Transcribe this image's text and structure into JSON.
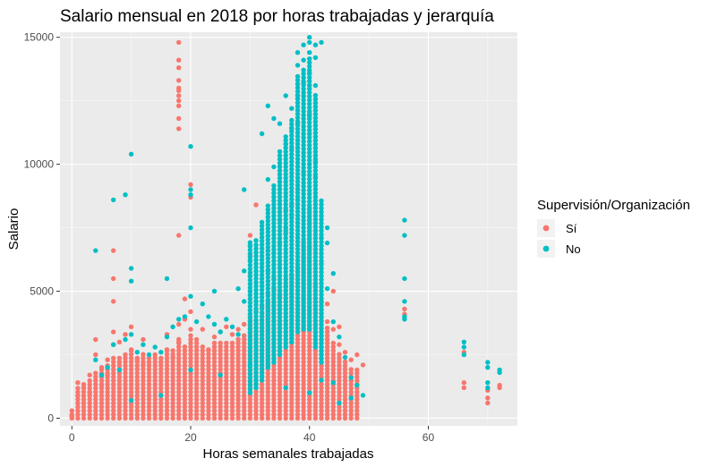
{
  "chart_data": {
    "type": "scatter",
    "title": "Salario mensual en 2018 por horas trabajadas y jerarquía",
    "xlabel": "Horas semanales trabajadas",
    "ylabel": "Salario",
    "xlim": [
      -2,
      75
    ],
    "ylim": [
      -300,
      15200
    ],
    "x_ticks": [
      0,
      20,
      40,
      60
    ],
    "y_ticks": [
      0,
      5000,
      10000,
      15000
    ],
    "x_tick_labels": [
      "0",
      "20",
      "40",
      "60"
    ],
    "y_tick_labels": [
      "0",
      "5000",
      "10000",
      "15000"
    ],
    "grid": true,
    "legend": {
      "title": "Supervisión/Organización",
      "placement": "right",
      "entries": [
        {
          "label": "Sí",
          "color": "#F8766D"
        },
        {
          "label": "No",
          "color": "#00BFC4"
        }
      ]
    },
    "series": [
      {
        "name": "Sí",
        "color": "#F8766D",
        "points": [
          [
            18,
            14800
          ],
          [
            18,
            14100
          ],
          [
            18,
            13800
          ],
          [
            18,
            13300
          ],
          [
            18,
            13000
          ],
          [
            18,
            12900
          ],
          [
            18,
            12700
          ],
          [
            18,
            12500
          ],
          [
            18,
            12300
          ],
          [
            18,
            11800
          ],
          [
            18,
            11400
          ],
          [
            20,
            9200
          ],
          [
            20,
            8700
          ],
          [
            18,
            7200
          ],
          [
            7,
            6600
          ],
          [
            7,
            5500
          ],
          [
            7,
            4600
          ],
          [
            19,
            4700
          ],
          [
            30,
            7200
          ],
          [
            30,
            6400
          ],
          [
            30,
            5600
          ],
          [
            31,
            8400
          ],
          [
            33,
            6600
          ],
          [
            34,
            5500
          ],
          [
            35,
            7800
          ],
          [
            36,
            8200
          ],
          [
            37,
            8400
          ],
          [
            38,
            9000
          ],
          [
            39,
            9700
          ],
          [
            40,
            10000
          ],
          [
            40,
            11200
          ],
          [
            41,
            9500
          ],
          [
            40,
            12000
          ],
          [
            39,
            12700
          ],
          [
            40,
            13100
          ],
          [
            38,
            11600
          ],
          [
            37,
            10600
          ],
          [
            36,
            7300
          ],
          [
            42,
            6100
          ],
          [
            43,
            4500
          ],
          [
            44,
            5000
          ],
          [
            45,
            3600
          ],
          [
            48,
            2500
          ],
          [
            49,
            2100
          ],
          [
            56,
            4300
          ],
          [
            56,
            4100
          ],
          [
            66,
            2600
          ],
          [
            66,
            1400
          ],
          [
            66,
            1200
          ],
          [
            70,
            1100
          ],
          [
            70,
            800
          ],
          [
            70,
            600
          ],
          [
            72,
            1300
          ],
          [
            72,
            1200
          ],
          [
            0,
            100
          ],
          [
            0,
            50
          ],
          [
            1,
            1400
          ],
          [
            1,
            900
          ],
          [
            2,
            1200
          ],
          [
            2,
            600
          ],
          [
            3,
            1700
          ],
          [
            3,
            1000
          ],
          [
            4,
            3100
          ],
          [
            4,
            2500
          ],
          [
            5,
            2000
          ],
          [
            5,
            1300
          ],
          [
            6,
            2300
          ],
          [
            6,
            1700
          ],
          [
            7,
            3400
          ],
          [
            7,
            2900
          ],
          [
            8,
            3000
          ],
          [
            8,
            2200
          ],
          [
            9,
            3300
          ],
          [
            9,
            2500
          ],
          [
            10,
            3600
          ],
          [
            10,
            2700
          ],
          [
            11,
            2300
          ],
          [
            12,
            3100
          ],
          [
            12,
            2100
          ],
          [
            13,
            2200
          ],
          [
            14,
            2500
          ],
          [
            15,
            2200
          ],
          [
            16,
            3300
          ],
          [
            16,
            2700
          ],
          [
            17,
            2400
          ],
          [
            18,
            3700
          ],
          [
            18,
            3000
          ],
          [
            19,
            3900
          ],
          [
            20,
            4200
          ],
          [
            20,
            3500
          ],
          [
            21,
            3100
          ],
          [
            22,
            3500
          ],
          [
            23,
            2700
          ],
          [
            24,
            3200
          ],
          [
            25,
            3400
          ],
          [
            26,
            3600
          ],
          [
            27,
            3300
          ],
          [
            28,
            3500
          ],
          [
            29,
            3700
          ],
          [
            30,
            4700
          ],
          [
            31,
            4200
          ],
          [
            32,
            4400
          ],
          [
            33,
            4900
          ],
          [
            34,
            5100
          ],
          [
            35,
            4800
          ],
          [
            36,
            5200
          ],
          [
            37,
            5600
          ],
          [
            38,
            5900
          ],
          [
            39,
            6300
          ],
          [
            40,
            6700
          ],
          [
            41,
            5300
          ],
          [
            42,
            4600
          ],
          [
            43,
            3800
          ],
          [
            44,
            3500
          ],
          [
            45,
            2900
          ],
          [
            46,
            2600
          ],
          [
            47,
            2300
          ],
          [
            48,
            1900
          ]
        ],
        "columns": [
          [
            0,
            0,
            400
          ],
          [
            1,
            0,
            1200
          ],
          [
            2,
            0,
            1400
          ],
          [
            3,
            0,
            1600
          ],
          [
            4,
            0,
            1800
          ],
          [
            5,
            0,
            2000
          ],
          [
            6,
            0,
            2200
          ],
          [
            7,
            0,
            2400
          ],
          [
            8,
            0,
            2400
          ],
          [
            9,
            0,
            2500
          ],
          [
            10,
            0,
            2700
          ],
          [
            11,
            0,
            2500
          ],
          [
            12,
            0,
            2600
          ],
          [
            13,
            0,
            2400
          ],
          [
            14,
            0,
            2500
          ],
          [
            15,
            0,
            2400
          ],
          [
            16,
            0,
            2700
          ],
          [
            17,
            0,
            2700
          ],
          [
            18,
            0,
            3200
          ],
          [
            19,
            0,
            2900
          ],
          [
            20,
            0,
            3300
          ],
          [
            21,
            0,
            3000
          ],
          [
            22,
            0,
            2900
          ],
          [
            23,
            0,
            2800
          ],
          [
            24,
            0,
            3000
          ],
          [
            25,
            0,
            3100
          ],
          [
            26,
            0,
            3000
          ],
          [
            27,
            0,
            3100
          ],
          [
            28,
            0,
            3200
          ],
          [
            29,
            0,
            3300
          ],
          [
            30,
            0,
            4000
          ],
          [
            31,
            0,
            3900
          ],
          [
            32,
            0,
            4200
          ],
          [
            33,
            0,
            4600
          ],
          [
            34,
            0,
            4900
          ],
          [
            35,
            0,
            5100
          ],
          [
            36,
            0,
            5600
          ],
          [
            37,
            0,
            5700
          ],
          [
            38,
            0,
            6200
          ],
          [
            39,
            0,
            7000
          ],
          [
            40,
            0,
            8400
          ],
          [
            41,
            0,
            5200
          ],
          [
            42,
            0,
            4600
          ],
          [
            43,
            0,
            3600
          ],
          [
            44,
            0,
            3000
          ],
          [
            45,
            0,
            2600
          ],
          [
            46,
            0,
            2300
          ],
          [
            47,
            0,
            2000
          ],
          [
            48,
            0,
            1800
          ]
        ]
      },
      {
        "name": "No",
        "color": "#00BFC4",
        "points": [
          [
            10,
            10400
          ],
          [
            9,
            8800
          ],
          [
            7,
            8600
          ],
          [
            10,
            5900
          ],
          [
            10,
            5400
          ],
          [
            4,
            6600
          ],
          [
            20,
            10700
          ],
          [
            20,
            9000
          ],
          [
            20,
            8800
          ],
          [
            20,
            7500
          ],
          [
            16,
            5500
          ],
          [
            24,
            5000
          ],
          [
            29,
            9000
          ],
          [
            30,
            6800
          ],
          [
            32,
            11200
          ],
          [
            33,
            12300
          ],
          [
            34,
            11800
          ],
          [
            35,
            11600
          ],
          [
            36,
            12700
          ],
          [
            37,
            12200
          ],
          [
            38,
            14400
          ],
          [
            38,
            13900
          ],
          [
            39,
            14700
          ],
          [
            39,
            14100
          ],
          [
            40,
            15000
          ],
          [
            40,
            14800
          ],
          [
            40,
            14400
          ],
          [
            41,
            14700
          ],
          [
            41,
            14200
          ],
          [
            41,
            13100
          ],
          [
            42,
            14800
          ],
          [
            40,
            13600
          ],
          [
            39,
            13200
          ],
          [
            38,
            12700
          ],
          [
            37,
            11400
          ],
          [
            36,
            10800
          ],
          [
            35,
            10500
          ],
          [
            34,
            9900
          ],
          [
            33,
            9400
          ],
          [
            31,
            7000
          ],
          [
            30,
            6200
          ],
          [
            29,
            5800
          ],
          [
            28,
            5100
          ],
          [
            43,
            7500
          ],
          [
            43,
            6900
          ],
          [
            44,
            5700
          ],
          [
            56,
            7800
          ],
          [
            56,
            7200
          ],
          [
            56,
            5500
          ],
          [
            56,
            4600
          ],
          [
            56,
            4000
          ],
          [
            56,
            3900
          ],
          [
            66,
            3000
          ],
          [
            66,
            2800
          ],
          [
            66,
            2500
          ],
          [
            70,
            2200
          ],
          [
            70,
            2000
          ],
          [
            70,
            1400
          ],
          [
            70,
            1200
          ],
          [
            72,
            1900
          ],
          [
            72,
            1800
          ],
          [
            4,
            2300
          ],
          [
            5,
            1700
          ],
          [
            6,
            2000
          ],
          [
            7,
            2900
          ],
          [
            8,
            1900
          ],
          [
            9,
            3100
          ],
          [
            10,
            3300
          ],
          [
            11,
            2600
          ],
          [
            12,
            2900
          ],
          [
            13,
            2500
          ],
          [
            14,
            2800
          ],
          [
            15,
            2600
          ],
          [
            16,
            3200
          ],
          [
            17,
            3600
          ],
          [
            18,
            3900
          ],
          [
            19,
            4000
          ],
          [
            20,
            4800
          ],
          [
            21,
            3800
          ],
          [
            22,
            4500
          ],
          [
            23,
            4000
          ],
          [
            24,
            3700
          ],
          [
            25,
            3400
          ],
          [
            26,
            3900
          ],
          [
            27,
            3600
          ],
          [
            28,
            3300
          ],
          [
            29,
            4600
          ],
          [
            30,
            5000
          ],
          [
            31,
            4600
          ],
          [
            32,
            5200
          ],
          [
            33,
            5800
          ],
          [
            34,
            6500
          ],
          [
            35,
            6900
          ],
          [
            36,
            7500
          ],
          [
            37,
            8000
          ],
          [
            38,
            8600
          ],
          [
            39,
            9600
          ],
          [
            40,
            11900
          ],
          [
            41,
            10100
          ],
          [
            42,
            7100
          ],
          [
            43,
            5100
          ],
          [
            44,
            3800
          ],
          [
            45,
            3200
          ],
          [
            46,
            2400
          ],
          [
            47,
            1600
          ],
          [
            48,
            1300
          ],
          [
            49,
            900
          ],
          [
            45,
            600
          ],
          [
            47,
            800
          ],
          [
            44,
            1400
          ],
          [
            40,
            1000
          ],
          [
            42,
            1500
          ],
          [
            36,
            1200
          ],
          [
            30,
            2100
          ],
          [
            25,
            1700
          ],
          [
            20,
            1900
          ],
          [
            15,
            900
          ],
          [
            10,
            700
          ]
        ],
        "columns": [
          [
            30,
            1000,
            7000
          ],
          [
            31,
            1200,
            6900
          ],
          [
            32,
            1500,
            7800
          ],
          [
            33,
            2000,
            8400
          ],
          [
            34,
            2200,
            9200
          ],
          [
            35,
            2500,
            10400
          ],
          [
            36,
            2800,
            11200
          ],
          [
            37,
            3000,
            11800
          ],
          [
            38,
            3400,
            13600
          ],
          [
            39,
            3500,
            13800
          ],
          [
            40,
            3500,
            14200
          ],
          [
            41,
            2800,
            12800
          ],
          [
            42,
            2200,
            8600
          ]
        ]
      }
    ]
  }
}
